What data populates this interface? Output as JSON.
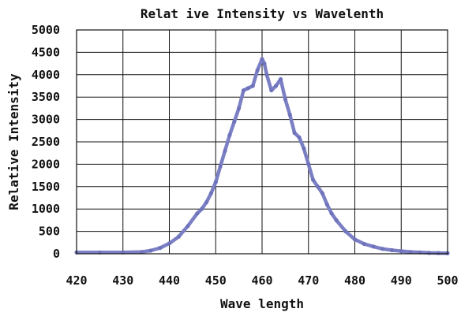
{
  "chart_data": {
    "type": "line",
    "title": "Relat ive Intensity vs Wavelenth",
    "xlabel": "Wave length",
    "ylabel": "Relative Intensity",
    "xlim": [
      420,
      500
    ],
    "ylim": [
      0,
      5000
    ],
    "grid": true,
    "legend": "none",
    "xticks": [
      "420",
      "430",
      "440",
      "450",
      "460",
      "470",
      "480",
      "490",
      "500"
    ],
    "yticks": [
      "0",
      "500",
      "1000",
      "1500",
      "2000",
      "2500",
      "3000",
      "3500",
      "4000",
      "4500",
      "5000"
    ],
    "colors": {
      "line": "#7b7fc4",
      "grid": "#111111",
      "text": "#111111"
    },
    "series": [
      {
        "x": [
          420,
          425,
          430,
          434,
          436,
          438,
          440,
          442,
          444,
          446,
          447,
          448,
          449,
          450,
          451,
          452,
          453,
          454,
          455,
          456,
          457,
          458,
          459,
          460,
          460.5,
          461,
          462,
          463,
          464,
          465,
          466,
          467,
          468,
          469,
          470,
          471,
          472,
          473,
          474,
          475,
          476,
          478,
          480,
          482,
          484,
          486,
          488,
          490,
          492,
          494,
          496,
          498,
          500
        ],
        "y": [
          30,
          30,
          30,
          40,
          70,
          130,
          230,
          380,
          620,
          900,
          1000,
          1150,
          1350,
          1600,
          1950,
          2300,
          2650,
          2950,
          3250,
          3650,
          3700,
          3750,
          4100,
          4350,
          4250,
          4000,
          3650,
          3750,
          3900,
          3450,
          3100,
          2700,
          2600,
          2350,
          2000,
          1650,
          1500,
          1350,
          1100,
          900,
          750,
          500,
          320,
          220,
          160,
          110,
          80,
          60,
          40,
          30,
          20,
          15,
          10
        ]
      }
    ]
  }
}
